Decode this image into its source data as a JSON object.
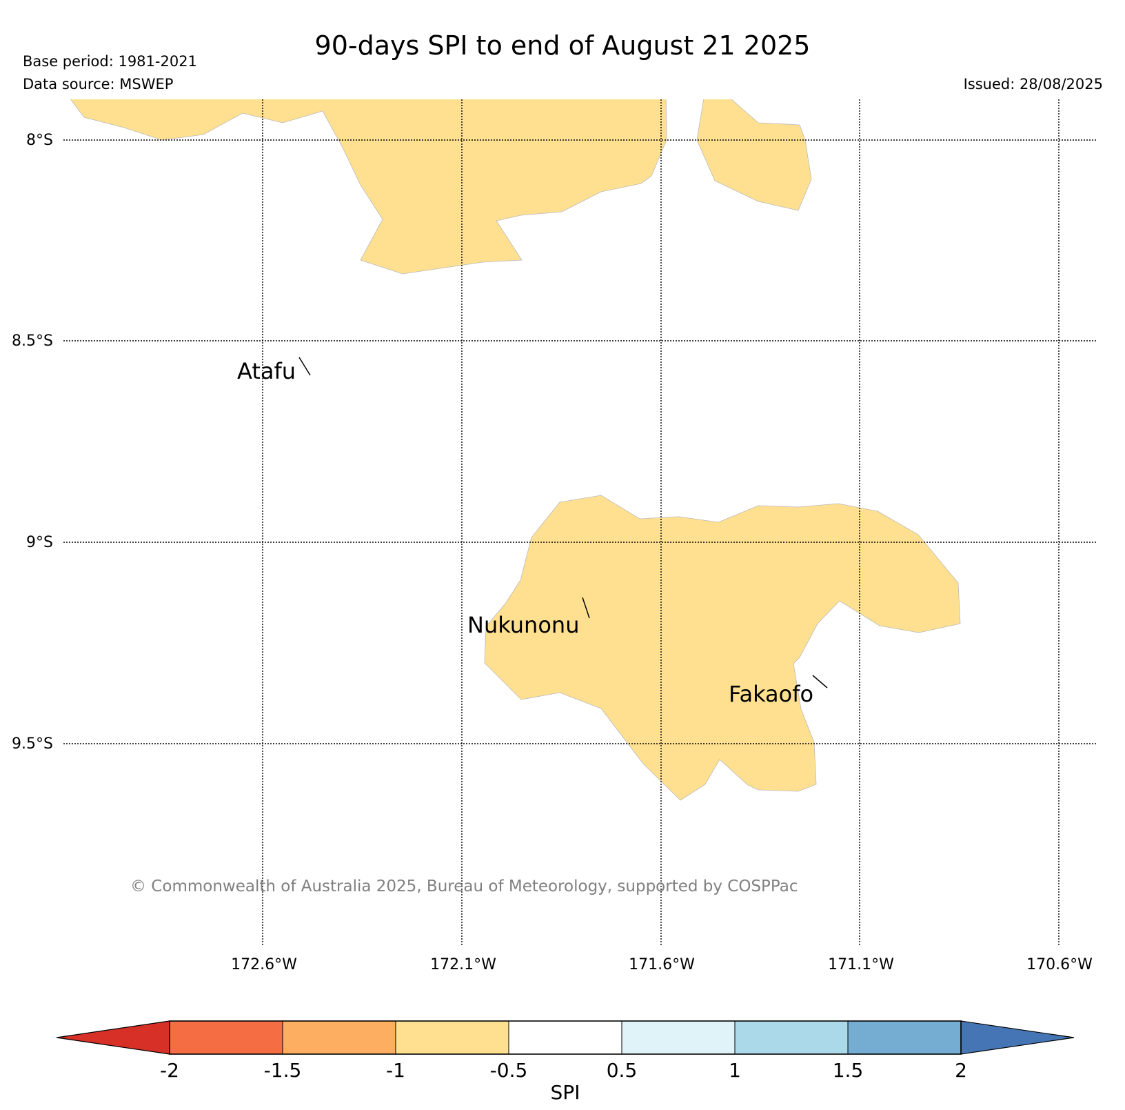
{
  "header": {
    "title": "90-days SPI to end of August 21 2025",
    "base_period": "Base period: 1981-2021",
    "data_source": "Data source: MSWEP",
    "issued": "Issued: 28/08/2025"
  },
  "map": {
    "lat_labels": [
      "8°S",
      "8.5°S",
      "9°S",
      "9.5°S"
    ],
    "lon_labels": [
      "172.6°W",
      "172.1°W",
      "171.6°W",
      "171.1°W",
      "170.6°W"
    ],
    "places": [
      {
        "name": "Atafu"
      },
      {
        "name": "Nukunonu"
      },
      {
        "name": "Fakaofo"
      }
    ],
    "copyright": "© Commonwealth of Australia 2025, Bureau of Meteorology, supported by COSPPac",
    "fill_color": "#fee090",
    "region_spi_class": "-1 to -0.5"
  },
  "colorbar": {
    "label": "SPI",
    "ticks": [
      "-2",
      "-1.5",
      "-1",
      "-0.5",
      "0.5",
      "1",
      "1.5",
      "2"
    ],
    "colors": [
      "#d73027",
      "#f46d43",
      "#fdae61",
      "#fee090",
      "#ffffff",
      "#e0f3f8",
      "#abd9e9",
      "#74add1",
      "#4575b4"
    ]
  }
}
